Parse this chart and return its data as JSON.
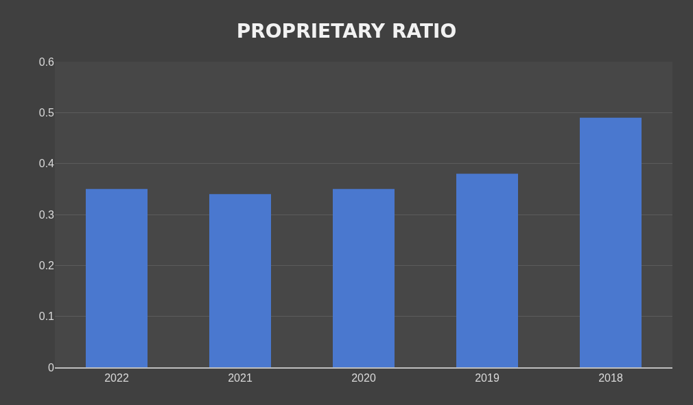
{
  "chart_data": {
    "type": "bar",
    "title": "PROPRIETARY RATIO",
    "categories": [
      "2022",
      "2021",
      "2020",
      "2019",
      "2018"
    ],
    "values": [
      0.35,
      0.34,
      0.35,
      0.38,
      0.49
    ],
    "color": "#4a78cf",
    "ylim": [
      0,
      0.6
    ],
    "yticks": [
      0,
      0.1,
      0.2,
      0.3,
      0.4,
      0.5,
      0.6
    ],
    "grid": "y"
  }
}
